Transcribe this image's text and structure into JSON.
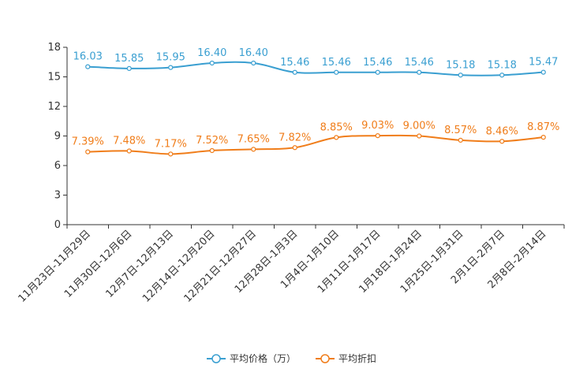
{
  "chart_data": {
    "type": "line",
    "categories": [
      "11月23日-11月29日",
      "11月30日-12月6日",
      "12月7日-12月13日",
      "12月14日-12月20日",
      "12月21日-12月27日",
      "12月28日-1月3日",
      "1月4日-1月10日",
      "1月11日-1月17日",
      "1月18日-1月24日",
      "1月25日-1月31日",
      "2月1日-2月7日",
      "2月8日-2月14日"
    ],
    "ylim": [
      0,
      18
    ],
    "yticks": [
      0,
      3,
      6,
      9,
      12,
      15,
      18
    ],
    "series": [
      {
        "name": "平均价格（万）",
        "color": "#3a9fd1",
        "values": [
          16.03,
          15.85,
          15.95,
          16.4,
          16.4,
          15.46,
          15.46,
          15.46,
          15.46,
          15.18,
          15.18,
          15.47
        ],
        "labels": [
          "16.03",
          "15.85",
          "15.95",
          "16.40",
          "16.40",
          "15.46",
          "15.46",
          "15.46",
          "15.46",
          "15.18",
          "15.18",
          "15.47"
        ]
      },
      {
        "name": "平均折扣",
        "color": "#f07d1a",
        "values": [
          7.39,
          7.48,
          7.17,
          7.52,
          7.65,
          7.82,
          8.85,
          9.03,
          9.0,
          8.57,
          8.46,
          8.87
        ],
        "labels": [
          "7.39%",
          "7.48%",
          "7.17%",
          "7.52%",
          "7.65%",
          "7.82%",
          "8.85%",
          "9.03%",
          "9.00%",
          "8.57%",
          "8.46%",
          "8.87%"
        ]
      }
    ],
    "title": "",
    "xlabel": "",
    "ylabel": ""
  }
}
